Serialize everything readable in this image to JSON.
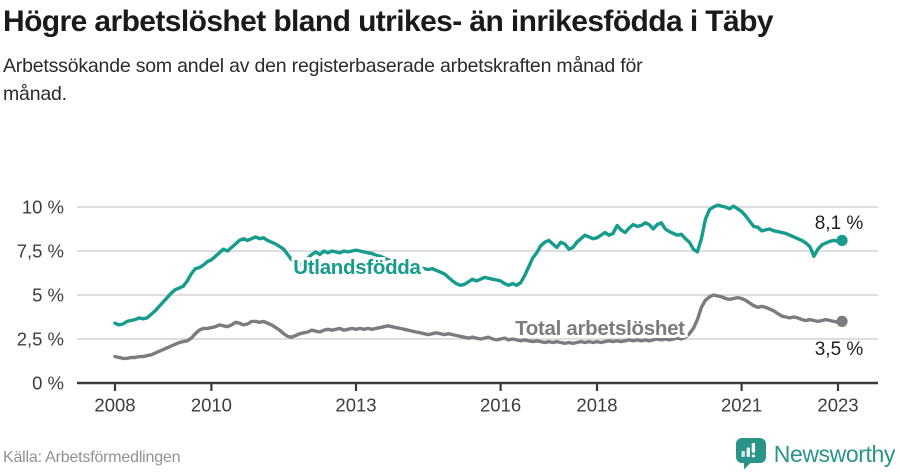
{
  "header": {
    "title": "Högre arbetslöshet bland utrikes- än inrikesfödda i Täby",
    "subtitle": "Arbetssökande som andel av den registerbaserade arbetskraften månad för månad."
  },
  "footer": {
    "source": "Källa: Arbetsförmedlingen",
    "brand_name": "Newsworthy",
    "brand_icon": "bar-chart-badge-icon"
  },
  "colors": {
    "accent_teal": "#169c8d",
    "series_gray": "#7b7b80",
    "grid": "#d9d9d9",
    "axis": "#3a3a3a",
    "tick_label": "#3d3d3d",
    "end_label": "#1f1f1f",
    "brand_teal": "#2a9488"
  },
  "chart_data": {
    "type": "line",
    "title": "Högre arbetslöshet bland utrikes- än inrikesfödda i Täby",
    "subtitle": "Arbetssökande som andel av den registerbaserade arbetskraften månad för månad.",
    "source": "Källa: Arbetsförmedlingen",
    "grid": true,
    "legend_position": "inline-labels",
    "x_start_year": 2008.0,
    "x_step_years": 0.0833333,
    "x_ticks": [
      2008,
      2010,
      2013,
      2016,
      2018,
      2021,
      2023
    ],
    "y_ticks": [
      {
        "value": 0,
        "label": "0 %"
      },
      {
        "value": 2.5,
        "label": "2,5 %"
      },
      {
        "value": 5,
        "label": "5 %"
      },
      {
        "value": 7.5,
        "label": "7,5 %"
      },
      {
        "value": 10,
        "label": "10 %"
      }
    ],
    "ylim": [
      0,
      10.6
    ],
    "xlim": [
      2007.2,
      2023.9
    ],
    "series": [
      {
        "name": "Utlandsfödda",
        "color": "#169c8d",
        "inline_label": {
          "text": "Utlandsfödda",
          "x": 2013.02,
          "y": 6.55
        },
        "end_label": "8,1 %",
        "end_label_side": "above",
        "end_value": 8.1,
        "values": [
          3.4,
          3.3,
          3.35,
          3.5,
          3.55,
          3.6,
          3.7,
          3.65,
          3.7,
          3.9,
          4.1,
          4.35,
          4.6,
          4.85,
          5.1,
          5.3,
          5.4,
          5.5,
          5.8,
          6.2,
          6.5,
          6.55,
          6.7,
          6.9,
          7.0,
          7.2,
          7.4,
          7.6,
          7.5,
          7.7,
          7.9,
          8.1,
          8.2,
          8.1,
          8.2,
          8.3,
          8.2,
          8.25,
          8.1,
          8.0,
          7.9,
          7.75,
          7.6,
          7.3,
          7.0,
          6.8,
          6.7,
          6.9,
          7.1,
          7.3,
          7.45,
          7.3,
          7.5,
          7.4,
          7.5,
          7.45,
          7.4,
          7.5,
          7.45,
          7.5,
          7.55,
          7.5,
          7.45,
          7.4,
          7.35,
          7.25,
          7.2,
          7.1,
          7.0,
          6.95,
          6.9,
          6.85,
          6.8,
          6.7,
          6.65,
          6.6,
          6.55,
          6.5,
          6.45,
          6.5,
          6.4,
          6.3,
          6.2,
          6.0,
          5.8,
          5.65,
          5.55,
          5.6,
          5.75,
          5.9,
          5.8,
          5.9,
          6.0,
          5.95,
          5.9,
          5.85,
          5.8,
          5.65,
          5.55,
          5.65,
          5.55,
          5.7,
          6.1,
          6.6,
          7.1,
          7.4,
          7.8,
          8.0,
          8.1,
          7.9,
          7.7,
          8.0,
          7.9,
          7.6,
          7.7,
          8.0,
          8.2,
          8.4,
          8.3,
          8.2,
          8.25,
          8.4,
          8.55,
          8.4,
          8.5,
          8.95,
          8.7,
          8.55,
          8.8,
          9.0,
          8.9,
          8.95,
          9.1,
          9.0,
          8.75,
          9.0,
          9.1,
          8.75,
          8.6,
          8.5,
          8.4,
          8.45,
          8.2,
          8.0,
          7.6,
          7.45,
          8.2,
          9.3,
          9.85,
          10.0,
          10.1,
          10.05,
          10.0,
          9.9,
          10.05,
          9.9,
          9.75,
          9.5,
          9.2,
          8.9,
          8.85,
          8.65,
          8.7,
          8.75,
          8.65,
          8.6,
          8.55,
          8.5,
          8.4,
          8.3,
          8.2,
          8.1,
          7.95,
          7.75,
          7.2,
          7.6,
          7.85,
          7.95,
          8.05,
          8.1,
          8.05,
          8.1
        ]
      },
      {
        "name": "Total arbetslöshet",
        "color": "#7b7b80",
        "inline_label": {
          "text": "Total arbetslöshet",
          "x": 2018.06,
          "y": 3.1
        },
        "end_label": "3,5 %",
        "end_label_side": "below",
        "end_value": 3.5,
        "values": [
          1.5,
          1.45,
          1.4,
          1.4,
          1.45,
          1.45,
          1.5,
          1.5,
          1.55,
          1.6,
          1.7,
          1.8,
          1.9,
          2.0,
          2.1,
          2.2,
          2.3,
          2.35,
          2.4,
          2.55,
          2.8,
          3.0,
          3.1,
          3.1,
          3.15,
          3.2,
          3.3,
          3.25,
          3.2,
          3.3,
          3.45,
          3.4,
          3.3,
          3.35,
          3.5,
          3.5,
          3.45,
          3.5,
          3.4,
          3.3,
          3.15,
          3.0,
          2.8,
          2.65,
          2.6,
          2.7,
          2.8,
          2.85,
          2.9,
          3.0,
          2.95,
          2.9,
          3.0,
          3.05,
          3.0,
          3.05,
          3.1,
          3.0,
          3.05,
          3.1,
          3.05,
          3.1,
          3.05,
          3.1,
          3.05,
          3.1,
          3.15,
          3.2,
          3.25,
          3.2,
          3.15,
          3.1,
          3.05,
          3.0,
          2.95,
          2.9,
          2.85,
          2.8,
          2.75,
          2.8,
          2.85,
          2.8,
          2.75,
          2.8,
          2.75,
          2.7,
          2.65,
          2.6,
          2.55,
          2.6,
          2.55,
          2.5,
          2.55,
          2.6,
          2.5,
          2.45,
          2.5,
          2.55,
          2.45,
          2.5,
          2.45,
          2.4,
          2.45,
          2.4,
          2.35,
          2.4,
          2.35,
          2.3,
          2.35,
          2.3,
          2.35,
          2.3,
          2.25,
          2.3,
          2.25,
          2.3,
          2.35,
          2.3,
          2.35,
          2.3,
          2.35,
          2.3,
          2.35,
          2.4,
          2.35,
          2.4,
          2.35,
          2.4,
          2.45,
          2.4,
          2.45,
          2.4,
          2.45,
          2.4,
          2.45,
          2.5,
          2.45,
          2.5,
          2.45,
          2.5,
          2.55,
          2.5,
          2.6,
          2.8,
          3.1,
          3.6,
          4.3,
          4.7,
          4.9,
          5.0,
          4.95,
          4.9,
          4.8,
          4.75,
          4.8,
          4.85,
          4.8,
          4.7,
          4.55,
          4.4,
          4.3,
          4.35,
          4.3,
          4.2,
          4.1,
          3.95,
          3.8,
          3.75,
          3.7,
          3.75,
          3.7,
          3.6,
          3.55,
          3.6,
          3.55,
          3.5,
          3.55,
          3.6,
          3.55,
          3.5,
          3.45,
          3.5
        ]
      }
    ]
  }
}
